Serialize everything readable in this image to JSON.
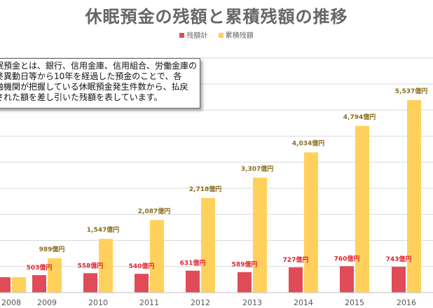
{
  "colors": {
    "dormant": "#e04b57",
    "cumulative": "#ffd15c",
    "label_red": "#e0262e",
    "label_gold": "#8a6d1e",
    "grid": "#d9d9d9",
    "axis_text": "#555555"
  },
  "note_lines": [
    "眠預金とは、銀行、信用金庫、信用組合、労働金庫の",
    "終異動日等から10年を経過した預金のことで、各",
    "融機関が把握している休眠預金発生件数から、払戻",
    "された額を差し引いた残額を表しています。"
  ],
  "chart_data": {
    "type": "bar",
    "title": "休眠預金の残額と累積残額の推移",
    "categories": [
      "2008",
      "2009",
      "2010",
      "2011",
      "2012",
      "2013",
      "2014",
      "2015",
      "2016"
    ],
    "series": [
      {
        "name": "残額計",
        "values": [
          null,
          503,
          558,
          540,
          631,
          589,
          727,
          760,
          743
        ],
        "labels": [
          "円",
          "503億円",
          "558億円",
          "540億円",
          "631億円",
          "589億円",
          "727億円",
          "760億円",
          "743億円"
        ]
      },
      {
        "name": "累積残額",
        "values": [
          null,
          989,
          1547,
          2087,
          2718,
          3307,
          4034,
          4794,
          5537
        ],
        "labels": [
          "",
          "989億円",
          "1,547億円",
          "2,087億円",
          "2,718億円",
          "3,307億円",
          "4,034億円",
          "4,794億円",
          "5,537億円"
        ]
      }
    ],
    "xlabel": "",
    "ylabel": "",
    "ylim": [
      0,
      6000
    ],
    "grid": true,
    "legend_position": "top-center"
  }
}
